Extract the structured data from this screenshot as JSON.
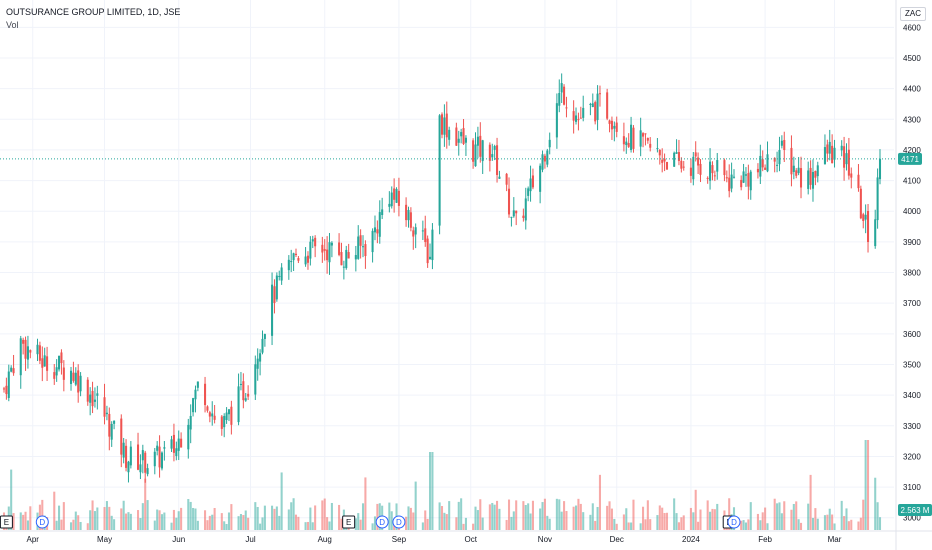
{
  "header": {
    "title": "OUTSURANCE GROUP LIMITED, 1D, JSE",
    "volume_label": "Vol"
  },
  "currency": "ZAC",
  "colors": {
    "up": "#26a69a",
    "down": "#ef5350",
    "grid": "#f0f3fa",
    "last_price": "#26a69a"
  },
  "price_axis": {
    "ticks": [
      3000,
      3100,
      3200,
      3300,
      3400,
      3500,
      3600,
      3700,
      3800,
      3900,
      4000,
      4100,
      4200,
      4300,
      4400,
      4500,
      4600
    ]
  },
  "last_price": "4171",
  "last_price_value": 4171,
  "last_volume": "2.563 M",
  "time_axis": {
    "labels": [
      "Apr",
      "May",
      "Jun",
      "Jul",
      "Aug",
      "Sep",
      "Oct",
      "Nov",
      "Dec",
      "2024",
      "Feb",
      "Mar"
    ]
  },
  "event_markers": [
    {
      "label": "E",
      "kind": "earnings",
      "position_index": 1
    },
    {
      "label": "D",
      "kind": "dividend",
      "position_index": 12
    },
    {
      "label": "E",
      "kind": "earnings",
      "position_index": 104
    },
    {
      "label": "D",
      "kind": "dividend",
      "position_index": 114
    },
    {
      "label": "D",
      "kind": "dividend",
      "position_index": 119
    },
    {
      "label": "E",
      "kind": "earnings",
      "position_index": 217
    },
    {
      "label": "D",
      "kind": "dividend",
      "position_index": 219
    }
  ],
  "chart_data": {
    "type": "candlestick",
    "title": "OUTSURANCE GROUP LIMITED, 1D, JSE",
    "y_unit": "ZAC",
    "ylim": [
      2960,
      4650
    ],
    "legend": "none",
    "grid": true,
    "series_anchors": [
      {
        "date": "2023-03-20",
        "close": 3420
      },
      {
        "date": "2023-03-27",
        "close": 3570
      },
      {
        "date": "2023-04-05",
        "close": 3510
      },
      {
        "date": "2023-04-17",
        "close": 3480
      },
      {
        "date": "2023-04-28",
        "close": 3380
      },
      {
        "date": "2023-05-10",
        "close": 3200
      },
      {
        "date": "2023-05-20",
        "close": 3180
      },
      {
        "date": "2023-05-31",
        "close": 3230
      },
      {
        "date": "2023-06-10",
        "close": 3450
      },
      {
        "date": "2023-06-18",
        "close": 3280
      },
      {
        "date": "2023-06-30",
        "close": 3440
      },
      {
        "date": "2023-07-10",
        "close": 3720
      },
      {
        "date": "2023-07-20",
        "close": 3860
      },
      {
        "date": "2023-08-01",
        "close": 3880
      },
      {
        "date": "2023-08-10",
        "close": 3850
      },
      {
        "date": "2023-08-20",
        "close": 3900
      },
      {
        "date": "2023-08-28",
        "close": 4060
      },
      {
        "date": "2023-09-08",
        "close": 3950
      },
      {
        "date": "2023-09-14",
        "close": 3850
      },
      {
        "date": "2023-09-18",
        "close": 4300
      },
      {
        "date": "2023-10-01",
        "close": 4200
      },
      {
        "date": "2023-10-10",
        "close": 4200
      },
      {
        "date": "2023-10-20",
        "close": 3950
      },
      {
        "date": "2023-10-30",
        "close": 4150
      },
      {
        "date": "2023-11-08",
        "close": 4400
      },
      {
        "date": "2023-11-15",
        "close": 4300
      },
      {
        "date": "2023-11-25",
        "close": 4350
      },
      {
        "date": "2023-12-05",
        "close": 4250
      },
      {
        "date": "2023-12-15",
        "close": 4200
      },
      {
        "date": "2023-12-27",
        "close": 4150
      },
      {
        "date": "2024-01-06",
        "close": 4150
      },
      {
        "date": "2024-01-17",
        "close": 4100
      },
      {
        "date": "2024-01-28",
        "close": 4120
      },
      {
        "date": "2024-02-07",
        "close": 4200
      },
      {
        "date": "2024-02-18",
        "close": 4100
      },
      {
        "date": "2024-02-28",
        "close": 4200
      },
      {
        "date": "2024-03-07",
        "close": 4150
      },
      {
        "date": "2024-03-14",
        "close": 3950
      },
      {
        "date": "2024-03-17",
        "close": 3900
      },
      {
        "date": "2024-03-20",
        "close": 4171
      }
    ],
    "volume_series": {
      "name": "Vol",
      "peaks": [
        {
          "date": "2023-09-15",
          "value": "high"
        },
        {
          "date": "2024-03-15",
          "value": "high"
        }
      ]
    }
  }
}
